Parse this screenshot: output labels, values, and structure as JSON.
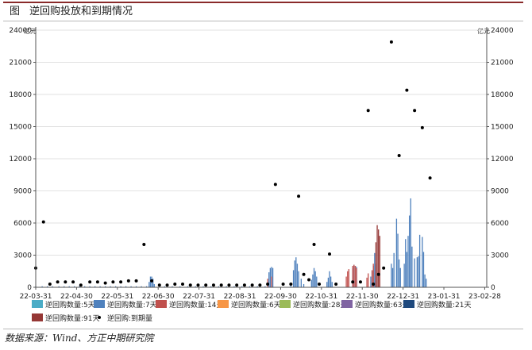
{
  "header": {
    "figure_label": "图",
    "title": "逆回购投放和到期情况"
  },
  "source_note": "数据来源：Wind、方正中期研究院",
  "chart_data": {
    "type": "bar",
    "title": "逆回购投放和到期情况",
    "y_unit_left": "亿元",
    "y_unit_right": "亿元",
    "ylim": [
      0,
      24000
    ],
    "y_ticks": [
      0,
      3000,
      6000,
      9000,
      12000,
      15000,
      18000,
      21000,
      24000
    ],
    "x_tick_labels": [
      "22-03-31",
      "22-04-30",
      "22-05-31",
      "22-06-30",
      "22-07-31",
      "22-08-31",
      "22-09-30",
      "22-10-31",
      "22-11-30",
      "22-12-31",
      "23-01-31",
      "23-02-28"
    ],
    "x_day_range": [
      0,
      350
    ],
    "grid": "horizontal",
    "legend_position": "bottom",
    "colors": {
      "repo_5d": "#4bacc6",
      "repo_7d": "#4f81bd",
      "repo_14d": "#c0504d",
      "repo_6d": "#f79646",
      "repo_28d": "#9bbb59",
      "repo_63d": "#8064a2",
      "repo_21d": "#1f497d",
      "repo_91d": "#953735",
      "maturity": "#000000"
    },
    "legend": [
      {
        "key": "repo_5d",
        "label": "逆回购数量:5天",
        "kind": "bar"
      },
      {
        "key": "repo_7d",
        "label": "逆回购数量:7天",
        "kind": "bar"
      },
      {
        "key": "repo_14d",
        "label": "逆回购数量:14天",
        "kind": "bar"
      },
      {
        "key": "repo_6d",
        "label": "逆回购数量:6天",
        "kind": "bar"
      },
      {
        "key": "repo_28d",
        "label": "逆回购数量:28天",
        "kind": "bar"
      },
      {
        "key": "repo_63d",
        "label": "逆回购数量:63天",
        "kind": "bar"
      },
      {
        "key": "repo_21d",
        "label": "逆回购数量:21天",
        "kind": "bar"
      },
      {
        "key": "repo_91d",
        "label": "逆回购数量:91天",
        "kind": "bar"
      },
      {
        "key": "maturity",
        "label": "逆回购:到期量",
        "kind": "dot"
      }
    ],
    "bars_7d": [
      [
        0,
        100
      ],
      [
        5,
        100
      ],
      [
        9,
        100
      ],
      [
        13,
        100
      ],
      [
        18,
        100
      ],
      [
        22,
        100
      ],
      [
        26,
        100
      ],
      [
        30,
        100
      ],
      [
        34,
        100
      ],
      [
        38,
        100
      ],
      [
        42,
        100
      ],
      [
        46,
        100
      ],
      [
        50,
        100
      ],
      [
        54,
        100
      ],
      [
        58,
        100
      ],
      [
        62,
        100
      ],
      [
        66,
        100
      ],
      [
        70,
        100
      ],
      [
        74,
        100
      ],
      [
        78,
        100
      ],
      [
        82,
        100
      ],
      [
        86,
        100
      ],
      [
        88,
        500
      ],
      [
        89,
        1000
      ],
      [
        90,
        1000
      ],
      [
        91,
        800
      ],
      [
        92,
        300
      ],
      [
        100,
        100
      ],
      [
        106,
        100
      ],
      [
        112,
        100
      ],
      [
        118,
        100
      ],
      [
        124,
        100
      ],
      [
        130,
        100
      ],
      [
        136,
        100
      ],
      [
        142,
        100
      ],
      [
        148,
        100
      ],
      [
        154,
        100
      ],
      [
        160,
        100
      ],
      [
        166,
        100
      ],
      [
        172,
        100
      ],
      [
        178,
        100
      ],
      [
        181,
        1400
      ],
      [
        182,
        1800
      ],
      [
        183,
        1900
      ],
      [
        184,
        1800
      ],
      [
        198,
        300
      ],
      [
        200,
        1600
      ],
      [
        201,
        2500
      ],
      [
        202,
        2800
      ],
      [
        203,
        2200
      ],
      [
        204,
        1500
      ],
      [
        206,
        800
      ],
      [
        208,
        300
      ],
      [
        214,
        700
      ],
      [
        215,
        1200
      ],
      [
        216,
        1800
      ],
      [
        217,
        1500
      ],
      [
        218,
        1000
      ],
      [
        226,
        500
      ],
      [
        227,
        900
      ],
      [
        228,
        1500
      ],
      [
        229,
        1000
      ],
      [
        230,
        500
      ],
      [
        246,
        1800
      ],
      [
        247,
        2100
      ],
      [
        248,
        2000
      ],
      [
        249,
        1900
      ],
      [
        260,
        1000
      ],
      [
        261,
        1500
      ],
      [
        262,
        2000
      ],
      [
        263,
        3200
      ],
      [
        264,
        2200
      ],
      [
        276,
        2200
      ],
      [
        277,
        1800
      ],
      [
        278,
        3200
      ],
      [
        280,
        6400
      ],
      [
        281,
        5000
      ],
      [
        282,
        2600
      ],
      [
        283,
        1800
      ],
      [
        286,
        2200
      ],
      [
        287,
        4500
      ],
      [
        288,
        3300
      ],
      [
        289,
        4800
      ],
      [
        290,
        6700
      ],
      [
        291,
        8300
      ],
      [
        292,
        3800
      ],
      [
        294,
        2700
      ],
      [
        296,
        2800
      ],
      [
        297,
        2900
      ],
      [
        298,
        4900
      ],
      [
        300,
        4700
      ],
      [
        301,
        3300
      ],
      [
        302,
        1200
      ],
      [
        303,
        800
      ]
    ],
    "bars_14d": [
      [
        180,
        800
      ],
      [
        183,
        1000
      ],
      [
        241,
        1000
      ],
      [
        242,
        1500
      ],
      [
        243,
        1700
      ],
      [
        246,
        2000
      ],
      [
        247,
        2100
      ],
      [
        248,
        2000
      ],
      [
        249,
        1800
      ],
      [
        257,
        900
      ],
      [
        258,
        1300
      ],
      [
        261,
        1600
      ],
      [
        262,
        2200
      ]
    ],
    "bars_91d": [
      [
        264,
        4200
      ],
      [
        265,
        5800
      ],
      [
        266,
        5400
      ],
      [
        267,
        4800
      ]
    ],
    "maturity": [
      [
        0,
        1800
      ],
      [
        6,
        6100
      ],
      [
        11,
        300
      ],
      [
        17,
        500
      ],
      [
        23,
        500
      ],
      [
        29,
        500
      ],
      [
        35,
        200
      ],
      [
        42,
        500
      ],
      [
        48,
        500
      ],
      [
        54,
        400
      ],
      [
        60,
        500
      ],
      [
        66,
        500
      ],
      [
        72,
        600
      ],
      [
        78,
        600
      ],
      [
        84,
        4000
      ],
      [
        90,
        600
      ],
      [
        96,
        200
      ],
      [
        102,
        200
      ],
      [
        108,
        300
      ],
      [
        114,
        300
      ],
      [
        120,
        200
      ],
      [
        126,
        200
      ],
      [
        132,
        200
      ],
      [
        138,
        200
      ],
      [
        144,
        200
      ],
      [
        150,
        200
      ],
      [
        156,
        200
      ],
      [
        162,
        200
      ],
      [
        168,
        200
      ],
      [
        174,
        200
      ],
      [
        180,
        300
      ],
      [
        186,
        9600
      ],
      [
        192,
        300
      ],
      [
        198,
        300
      ],
      [
        204,
        8500
      ],
      [
        208,
        1200
      ],
      [
        212,
        700
      ],
      [
        216,
        4000
      ],
      [
        220,
        300
      ],
      [
        228,
        3100
      ],
      [
        233,
        300
      ],
      [
        246,
        500
      ],
      [
        252,
        500
      ],
      [
        258,
        16500
      ],
      [
        262,
        300
      ],
      [
        266,
        1200
      ],
      [
        270,
        1800
      ],
      [
        276,
        22900
      ],
      [
        282,
        12300
      ],
      [
        288,
        18400
      ],
      [
        294,
        16500
      ],
      [
        300,
        14900
      ],
      [
        306,
        10200
      ]
    ]
  }
}
